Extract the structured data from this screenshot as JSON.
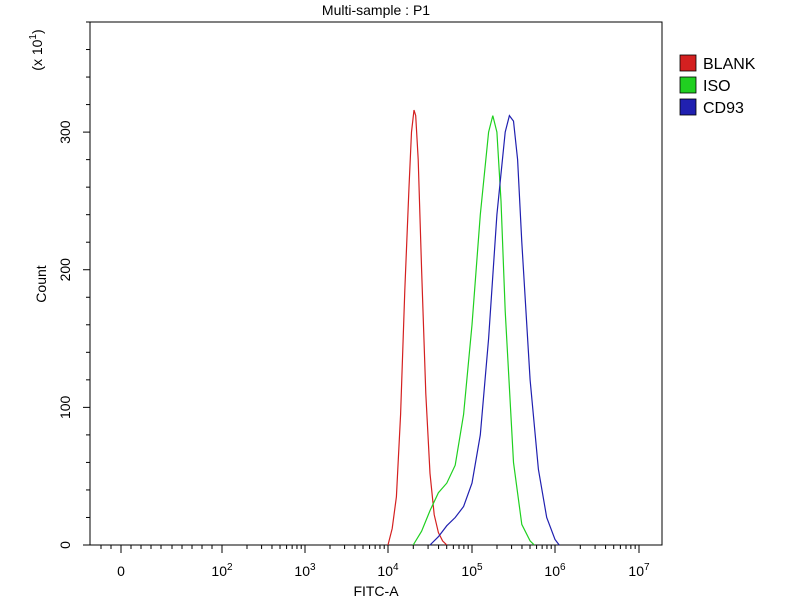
{
  "chart_data": {
    "type": "line",
    "title": "Multi-sample : P1",
    "xlabel": "FITC-A",
    "ylabel": "Count",
    "y_multiplier": "(x 10",
    "y_multiplier_exp": "1",
    "y_multiplier_close": ")",
    "x_scale": "biexponential (log)",
    "xlim_decades": [
      0,
      7
    ],
    "ylim": [
      0,
      380
    ],
    "y_ticks": [
      {
        "value": 0,
        "label": "0"
      },
      {
        "value": 100,
        "label": "100"
      },
      {
        "value": 200,
        "label": "200"
      },
      {
        "value": 300,
        "label": "300"
      }
    ],
    "x_ticks": [
      {
        "decade": 0,
        "base": "0",
        "exp": ""
      },
      {
        "decade": 2,
        "base": "10",
        "exp": "2"
      },
      {
        "decade": 3,
        "base": "10",
        "exp": "3"
      },
      {
        "decade": 4,
        "base": "10",
        "exp": "4"
      },
      {
        "decade": 5,
        "base": "10",
        "exp": "5"
      },
      {
        "decade": 6,
        "base": "10",
        "exp": "6"
      },
      {
        "decade": 7,
        "base": "10",
        "exp": "7"
      }
    ],
    "grid": false,
    "legend_position": "right-top",
    "series": [
      {
        "name": "BLANK",
        "color": "#d42020",
        "x": [
          4.0,
          4.05,
          4.1,
          4.15,
          4.2,
          4.25,
          4.28,
          4.31,
          4.33,
          4.36,
          4.4,
          4.45,
          4.5,
          4.55,
          4.6,
          4.65,
          4.7
        ],
        "y": [
          0,
          12,
          35,
          95,
          185,
          260,
          300,
          316,
          312,
          280,
          200,
          110,
          52,
          22,
          9,
          3,
          0
        ]
      },
      {
        "name": "ISO",
        "color": "#20d020",
        "x": [
          4.3,
          4.4,
          4.5,
          4.6,
          4.7,
          4.8,
          4.9,
          5.0,
          5.1,
          5.2,
          5.25,
          5.3,
          5.35,
          5.4,
          5.5,
          5.6,
          5.7,
          5.75
        ],
        "y": [
          0,
          10,
          25,
          38,
          45,
          58,
          95,
          160,
          240,
          300,
          312,
          300,
          250,
          170,
          60,
          15,
          3,
          0
        ]
      },
      {
        "name": "CD93",
        "color": "#2020b0",
        "x": [
          4.5,
          4.6,
          4.7,
          4.8,
          4.9,
          5.0,
          5.1,
          5.2,
          5.3,
          5.4,
          5.45,
          5.5,
          5.55,
          5.6,
          5.7,
          5.8,
          5.9,
          6.0,
          6.05
        ],
        "y": [
          0,
          6,
          14,
          20,
          28,
          45,
          80,
          150,
          240,
          300,
          312,
          308,
          280,
          220,
          120,
          55,
          20,
          4,
          0
        ]
      }
    ]
  }
}
